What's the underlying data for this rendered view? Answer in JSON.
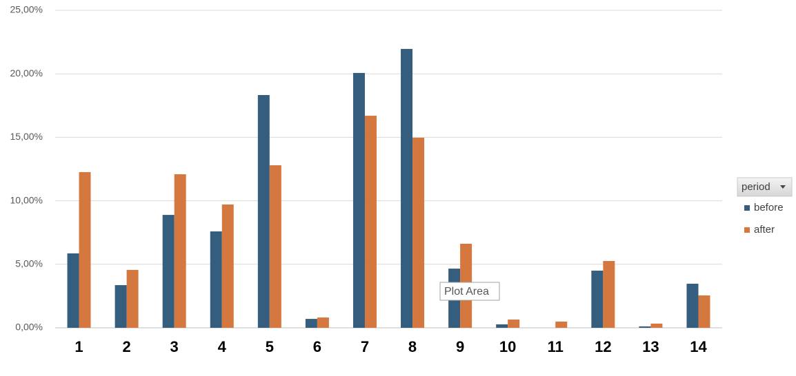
{
  "chart_data": {
    "type": "bar",
    "categories": [
      "1",
      "2",
      "3",
      "4",
      "5",
      "6",
      "7",
      "8",
      "9",
      "10",
      "11",
      "12",
      "13",
      "14"
    ],
    "series": [
      {
        "name": "before",
        "color": "#355e7e",
        "values": [
          5.86,
          3.36,
          8.89,
          7.59,
          18.33,
          0.7,
          20.07,
          21.96,
          4.66,
          0.27,
          0,
          4.5,
          0.11,
          3.47
        ]
      },
      {
        "name": "after",
        "color": "#d5783f",
        "values": [
          12.26,
          4.56,
          12.09,
          9.71,
          12.8,
          0.81,
          16.7,
          14.97,
          6.62,
          0.65,
          0.49,
          5.26,
          0.33,
          2.55
        ]
      }
    ],
    "ylim": [
      0,
      25
    ],
    "yticks": [
      {
        "value": 0,
        "label": "0,00%"
      },
      {
        "value": 5,
        "label": "5,00%"
      },
      {
        "value": 10,
        "label": "10,00%"
      },
      {
        "value": 15,
        "label": "15,00%"
      },
      {
        "value": 20,
        "label": "20,00%"
      },
      {
        "value": 25,
        "label": "25,00%"
      }
    ],
    "grid": true,
    "legend_title": "period",
    "legend_position": "right",
    "tooltip": "Plot Area"
  }
}
